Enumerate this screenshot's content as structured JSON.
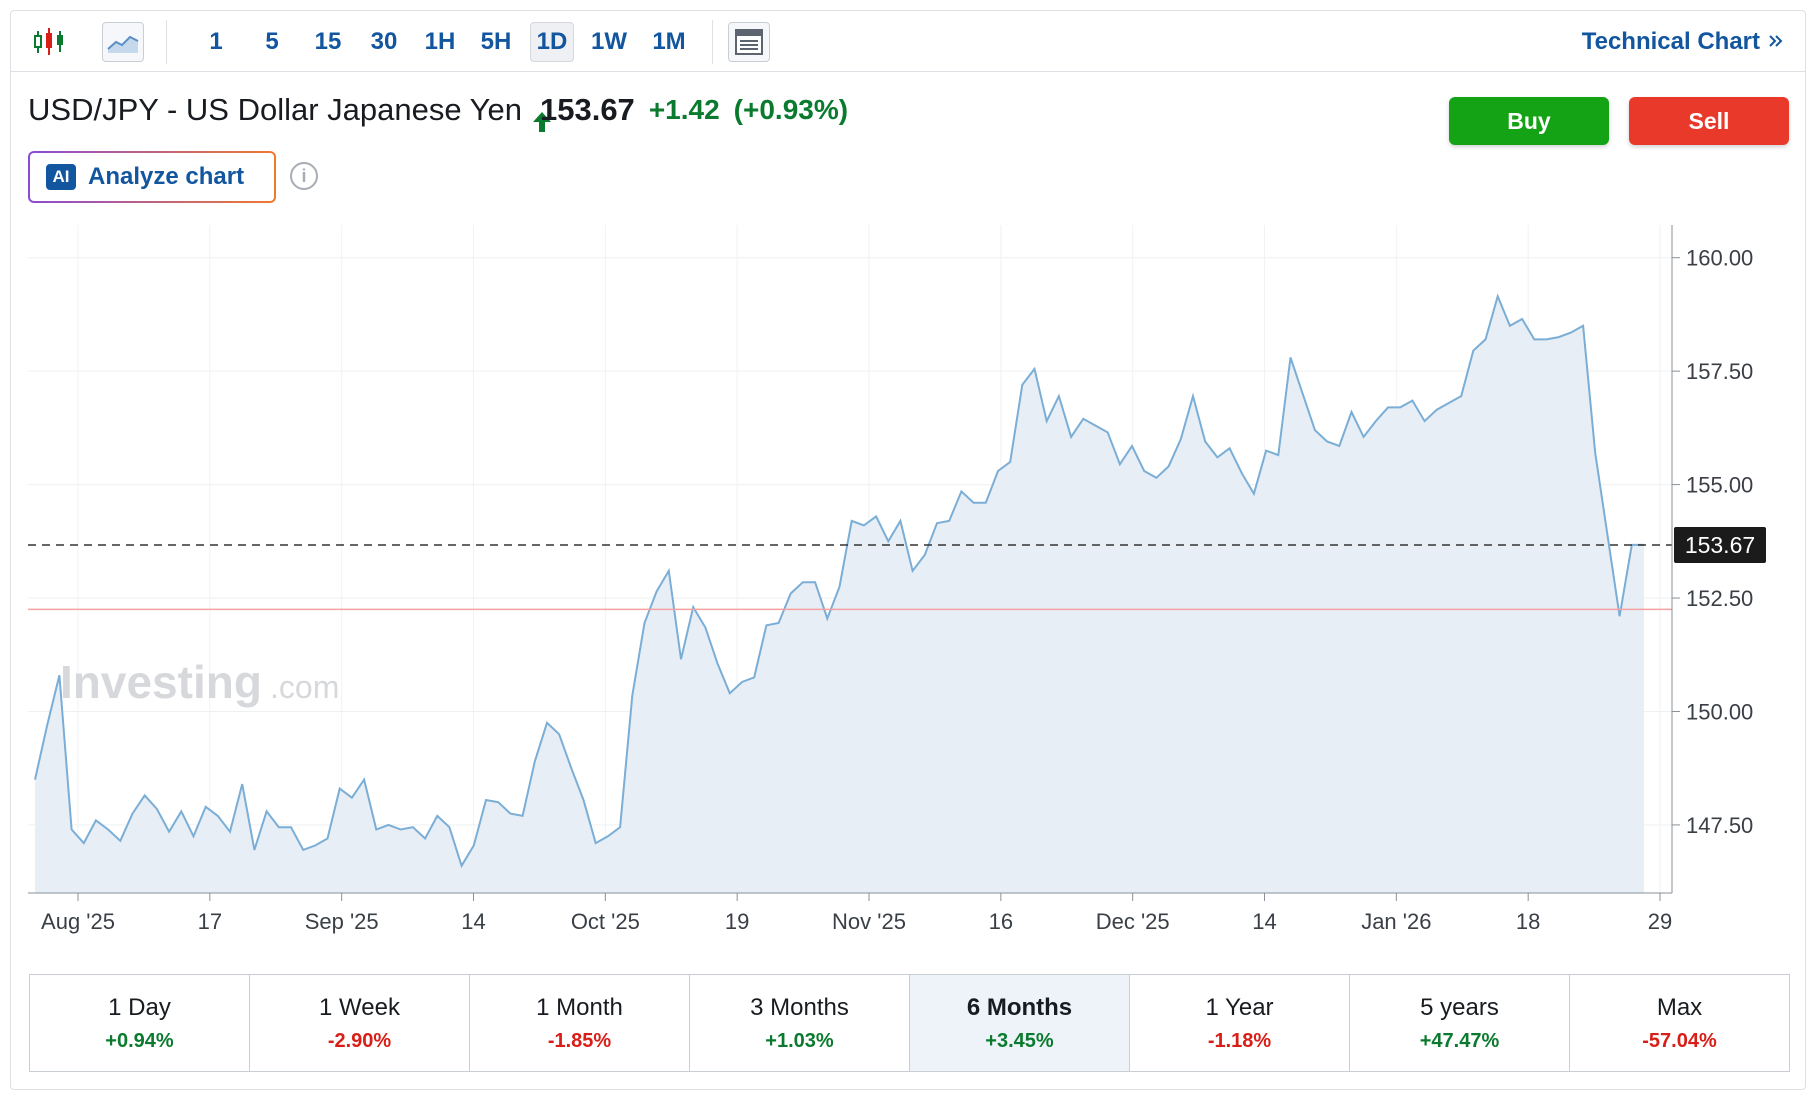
{
  "toolbar": {
    "intervals": [
      "1",
      "5",
      "15",
      "30",
      "1H",
      "5H",
      "1D",
      "1W",
      "1M"
    ],
    "active_interval": "1D",
    "technical_chart_label": "Technical Chart",
    "icons": [
      "candlestick-icon",
      "line-chart-icon",
      "layout-icon",
      "double-chevron-right-icon"
    ]
  },
  "instrument": {
    "name": "USD/JPY - US Dollar Japanese Yen",
    "price": "153.67",
    "change": "+1.42",
    "change_percent": "(+0.93%)"
  },
  "actions": {
    "buy_label": "Buy",
    "sell_label": "Sell"
  },
  "analyze": {
    "badge": "AI",
    "label": "Analyze chart"
  },
  "colors": {
    "up": "#0a7b2e",
    "down": "#d91e18",
    "buy": "#14a314",
    "sell": "#e8392b",
    "line": "#7aaed6",
    "fill": "#e8eef6",
    "link": "#1256a0"
  },
  "chart_data": {
    "type": "area",
    "y_axis": {
      "min": 146,
      "max": 160.5,
      "ticks": [
        147.5,
        150,
        152.5,
        155,
        157.5,
        160
      ],
      "tick_labels": [
        "147.50",
        "150.00",
        "152.50",
        "155.00",
        "157.50",
        "160.00"
      ],
      "position": "right"
    },
    "x_tick_labels": [
      "Aug '25",
      "17",
      "Sep '25",
      "14",
      "Oct '25",
      "19",
      "Nov '25",
      "16",
      "Dec '25",
      "14",
      "Jan '26",
      "18",
      "29"
    ],
    "current_price": {
      "value": 153.67,
      "label": "153.67"
    },
    "reference_line": 152.25,
    "watermark": {
      "brand": "Investing",
      "suffix": ".com"
    },
    "grid": true,
    "values": [
      148.5,
      149.7,
      150.8,
      147.4,
      147.1,
      147.6,
      147.4,
      147.15,
      147.75,
      148.15,
      147.85,
      147.35,
      147.8,
      147.25,
      147.9,
      147.7,
      147.35,
      148.4,
      146.95,
      147.8,
      147.45,
      147.45,
      146.95,
      147.05,
      147.2,
      148.3,
      148.1,
      148.5,
      147.4,
      147.5,
      147.4,
      147.45,
      147.2,
      147.7,
      147.45,
      146.6,
      147.05,
      148.05,
      148.0,
      147.75,
      147.7,
      148.9,
      149.75,
      149.5,
      148.75,
      148.05,
      147.1,
      147.25,
      147.45,
      150.35,
      151.95,
      152.65,
      153.1,
      151.15,
      152.3,
      151.85,
      151.05,
      150.4,
      150.65,
      150.75,
      151.9,
      151.95,
      152.6,
      152.85,
      152.85,
      152.05,
      152.75,
      154.2,
      154.1,
      154.3,
      153.75,
      154.2,
      153.1,
      153.45,
      154.15,
      154.2,
      154.85,
      154.6,
      154.6,
      155.3,
      155.5,
      157.2,
      157.55,
      156.4,
      156.95,
      156.05,
      156.45,
      156.3,
      156.15,
      155.45,
      155.85,
      155.3,
      155.15,
      155.4,
      156.0,
      156.95,
      155.95,
      155.6,
      155.8,
      155.25,
      154.8,
      155.75,
      155.65,
      157.8,
      157.0,
      156.2,
      155.95,
      155.85,
      156.6,
      156.05,
      156.4,
      156.7,
      156.7,
      156.85,
      156.4,
      156.65,
      156.8,
      156.95,
      157.95,
      158.2,
      159.15,
      158.5,
      158.65,
      158.2,
      158.2,
      158.25,
      158.35,
      158.5,
      155.7,
      153.9,
      152.1,
      153.67,
      153.67
    ]
  },
  "periods": [
    {
      "label": "1 Day",
      "value": "+0.94%"
    },
    {
      "label": "1 Week",
      "value": "-2.90%"
    },
    {
      "label": "1 Month",
      "value": "-1.85%"
    },
    {
      "label": "3 Months",
      "value": "+1.03%"
    },
    {
      "label": "6 Months",
      "value": "+3.45%"
    },
    {
      "label": "1 Year",
      "value": "-1.18%"
    },
    {
      "label": "5 years",
      "value": "+47.47%"
    },
    {
      "label": "Max",
      "value": "-57.04%"
    }
  ],
  "active_period": "6 Months"
}
